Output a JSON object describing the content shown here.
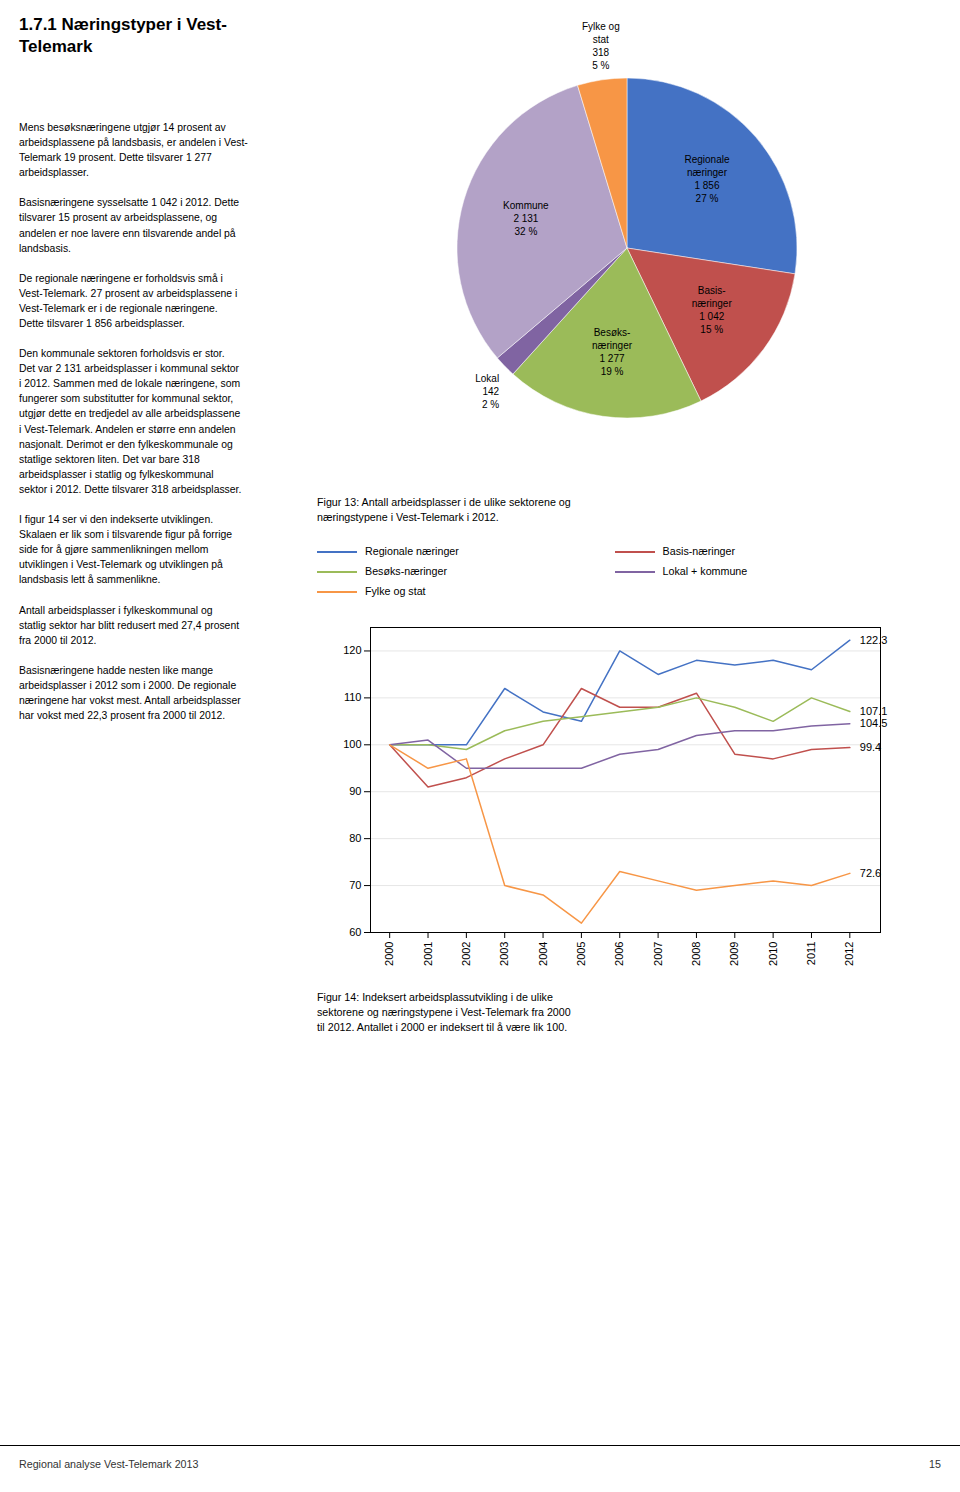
{
  "title": "1.7.1 Næringstyper i Vest-\nTelemark",
  "annotations": [
    "Mens besøksnæringene utgjør 14 prosent av\narbeidsplassene på landsbasis, er andelen i Vest-\nTelemark 19 prosent. Dette tilsvarer 1 277\narbeidsplasser.\n\nBasisnæringene sysselsatte 1 042 i 2012. Dette\ntilsvarer 15 prosent av arbeidsplassene, og\nandelen er noe lavere enn tilsvarende andel på\nlandsbasis.\n\nDe regionale næringene er forholdsvis små i\nVest-Telemark. 27 prosent av arbeidsplassene i\nVest-Telemark er i de regionale næringene.\nDette tilsvarer 1 856 arbeidsplasser.\n\nDen kommunale sektoren forholdsvis er stor.\nDet var 2 131 arbeidsplasser i kommunal sektor\ni 2012. Sammen med de lokale næringene, som\nfungerer som substitutter for kommunal sektor,\nutgjør dette en tredjedel av alle arbeidsplassene\ni Vest-Telemark. Andelen er større enn andelen\nnasjonalt. Derimot er den fylkeskommunale og\nstatlige sektoren liten. Det var bare 318\narbeidsplasser i statlig og fylkeskommunal\nsektor i 2012. Dette tilsvarer 318 arbeidsplasser.\n\nI figur 14 ser vi den indekserte utviklingen.\nSkalaen er lik som i tilsvarende figur på forrige\nside for å gjøre sammenlikningen mellom\nutviklingen i Vest-Telemark og utviklingen på\nlandsbasis lett å sammenlikne.\n\nAntall arbeidsplasser i fylkeskommunal og\nstatlig sektor har blitt redusert med 27,4 prosent\nfra 2000 til 2012.\n\nBasisnæringene hadde nesten like mange\narbeidsplasser i 2012 som i 2000. De regionale\nnæringene har vokst mest. Antall arbeidsplasser\nhar vokst med 22,3 prosent fra 2000 til 2012.",
    "Regional analyse Vest-Telemark 2013",
    "15"
  ],
  "chart_data": [
    {
      "type": "pie",
      "title": "Figur 13: Antall arbeidsplasser i de ulike sektorene og\nnæringstypene i Vest-Telemark i 2012.",
      "categories": [
        "Regionale\nnæringer",
        "Basis-\nnæringer",
        "Besøks-\nnæringer",
        "Lokal",
        "Kommune",
        "Fylke og\nstat"
      ],
      "values": [
        1856,
        1042,
        1277,
        142,
        2131,
        318
      ],
      "value_labels": [
        "1 856",
        "1 042",
        "1 277",
        "142",
        "2 131",
        "318"
      ],
      "shares": [
        27,
        15,
        19,
        2,
        32,
        5
      ],
      "share_labels": [
        "27 %",
        "15 %",
        "19 %",
        "2 %",
        "32 %",
        "5 %"
      ],
      "colors": [
        "#4472C4",
        "#C0504D",
        "#9BBB59",
        "#8064A2",
        "#B3A2C7",
        "#F79646"
      ]
    },
    {
      "type": "line",
      "title": "Figur 14: Indeksert arbeidsplassutvikling i de ulike\nsektorene og næringstypene i Vest-Telemark fra 2000\ntil 2012. Antallet i 2000 er indeksert til å være lik 100.",
      "x": [
        2000,
        2001,
        2002,
        2003,
        2004,
        2005,
        2006,
        2007,
        2008,
        2009,
        2010,
        2011,
        2012
      ],
      "series": [
        {
          "name": "Regionale næringer",
          "color": "#4472C4",
          "values": [
            100,
            100,
            100,
            112,
            107,
            105,
            120,
            115,
            118,
            117,
            118,
            116,
            122.3
          ]
        },
        {
          "name": "Basis-næringer",
          "color": "#C0504D",
          "values": [
            100,
            91,
            93,
            97,
            100,
            112,
            108,
            108,
            111,
            98,
            97,
            99,
            99.4
          ]
        },
        {
          "name": "Besøks-næringer",
          "color": "#9BBB59",
          "values": [
            100,
            100,
            99,
            103,
            105,
            106,
            107,
            108,
            110,
            108,
            105,
            110,
            107.1
          ]
        },
        {
          "name": "Lokal + kommune",
          "color": "#8064A2",
          "values": [
            100,
            101,
            95,
            95,
            95,
            95,
            98,
            99,
            102,
            103,
            103,
            104,
            104.5
          ]
        },
        {
          "name": "Fylke og stat",
          "color": "#F79646",
          "values": [
            100,
            95,
            97,
            70,
            68,
            62,
            73,
            71,
            69,
            70,
            71,
            70,
            72.6
          ]
        }
      ],
      "xlim": [
        1999.5,
        2012.8
      ],
      "xticks": [
        2000,
        2001,
        2002,
        2003,
        2004,
        2005,
        2006,
        2007,
        2008,
        2009,
        2010,
        2011,
        2012
      ],
      "ylim": [
        60,
        125
      ],
      "yticks": [
        60,
        70,
        80,
        90,
        100,
        110,
        120
      ],
      "grid": true,
      "legend": "top",
      "end_labels": [
        122.3,
        99.4,
        107.1,
        104.5,
        72.6
      ]
    }
  ]
}
